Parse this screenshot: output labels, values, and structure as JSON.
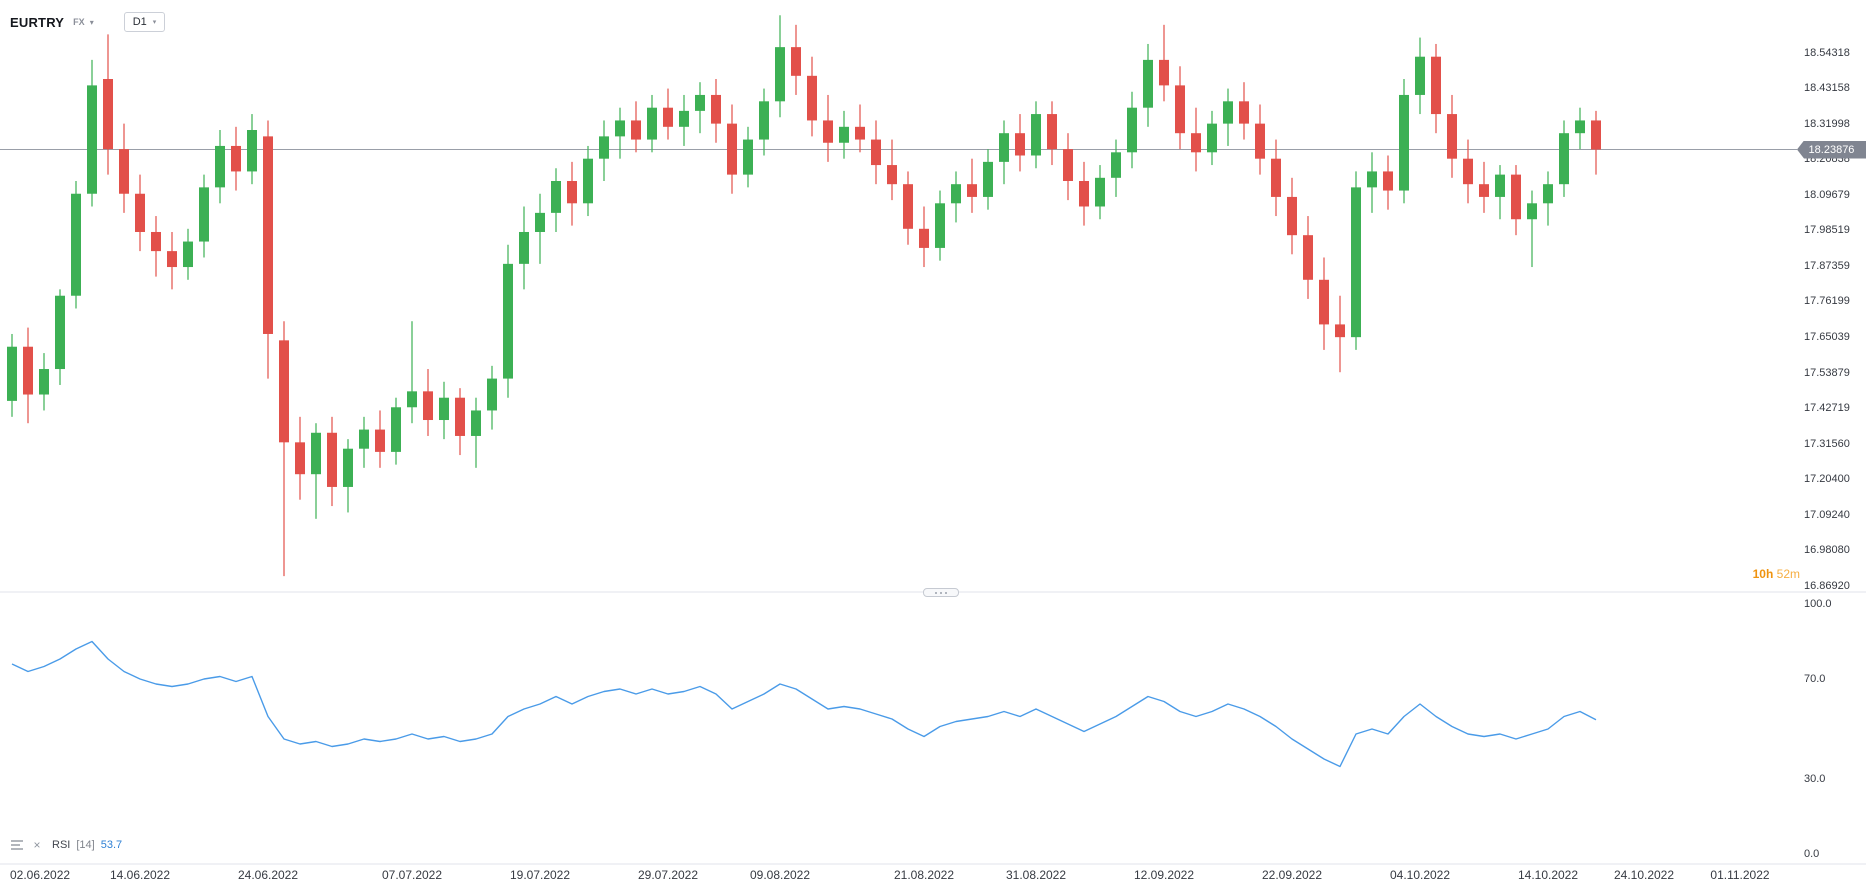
{
  "header": {
    "symbol": "EURTRY",
    "market": "FX",
    "timeframe": "D1"
  },
  "price_badge": "18.23876",
  "countdown": {
    "hours": "10h",
    "minutes": "52m"
  },
  "rsi_legend": {
    "name": "RSI",
    "params": "[14]",
    "value": "53.7"
  },
  "chart_data": {
    "type": "candlestick",
    "title": "EURTRY D1",
    "ylim": [
      16.8692,
      18.66
    ],
    "grid": false,
    "legend_position": "top-left",
    "current_price": 18.23876,
    "price_ticks": [
      "18.54318",
      "18.43158",
      "18.31998",
      "18.20838",
      "18.09679",
      "17.98519",
      "17.87359",
      "17.76199",
      "17.65039",
      "17.53879",
      "17.42719",
      "17.31560",
      "17.20400",
      "17.09240",
      "16.98080",
      "16.86920"
    ],
    "time_ticks": [
      {
        "label": "02.06.2022",
        "index": 0
      },
      {
        "label": "14.06.2022",
        "index": 8
      },
      {
        "label": "24.06.2022",
        "index": 16
      },
      {
        "label": "07.07.2022",
        "index": 25
      },
      {
        "label": "19.07.2022",
        "index": 33
      },
      {
        "label": "29.07.2022",
        "index": 41
      },
      {
        "label": "09.08.2022",
        "index": 48
      },
      {
        "label": "21.08.2022",
        "index": 57
      },
      {
        "label": "31.08.2022",
        "index": 64
      },
      {
        "label": "12.09.2022",
        "index": 72
      },
      {
        "label": "22.09.2022",
        "index": 80
      },
      {
        "label": "04.10.2022",
        "index": 88
      },
      {
        "label": "14.10.2022",
        "index": 96
      },
      {
        "label": "24.10.2022",
        "index": 102
      },
      {
        "label": "01.11.2022",
        "index": 108
      }
    ],
    "candles_ohlc": [
      [
        17.45,
        17.66,
        17.4,
        17.62
      ],
      [
        17.62,
        17.68,
        17.38,
        17.47
      ],
      [
        17.47,
        17.6,
        17.42,
        17.55
      ],
      [
        17.55,
        17.8,
        17.5,
        17.78
      ],
      [
        17.78,
        18.14,
        17.74,
        18.1
      ],
      [
        18.1,
        18.52,
        18.06,
        18.44
      ],
      [
        18.46,
        18.6,
        18.16,
        18.24
      ],
      [
        18.24,
        18.32,
        18.04,
        18.1
      ],
      [
        18.1,
        18.16,
        17.92,
        17.98
      ],
      [
        17.98,
        18.03,
        17.84,
        17.92
      ],
      [
        17.92,
        17.98,
        17.8,
        17.87
      ],
      [
        17.87,
        17.99,
        17.83,
        17.95
      ],
      [
        17.95,
        18.16,
        17.9,
        18.12
      ],
      [
        18.12,
        18.3,
        18.07,
        18.25
      ],
      [
        18.25,
        18.31,
        18.11,
        18.17
      ],
      [
        18.17,
        18.35,
        18.13,
        18.3
      ],
      [
        18.28,
        18.33,
        17.52,
        17.66
      ],
      [
        17.64,
        17.7,
        16.9,
        17.32
      ],
      [
        17.32,
        17.4,
        17.14,
        17.22
      ],
      [
        17.22,
        17.38,
        17.08,
        17.35
      ],
      [
        17.35,
        17.4,
        17.12,
        17.18
      ],
      [
        17.18,
        17.33,
        17.1,
        17.3
      ],
      [
        17.3,
        17.4,
        17.24,
        17.36
      ],
      [
        17.36,
        17.42,
        17.24,
        17.29
      ],
      [
        17.29,
        17.46,
        17.25,
        17.43
      ],
      [
        17.43,
        17.7,
        17.38,
        17.48
      ],
      [
        17.48,
        17.55,
        17.34,
        17.39
      ],
      [
        17.39,
        17.51,
        17.33,
        17.46
      ],
      [
        17.46,
        17.49,
        17.28,
        17.34
      ],
      [
        17.34,
        17.46,
        17.24,
        17.42
      ],
      [
        17.42,
        17.56,
        17.36,
        17.52
      ],
      [
        17.52,
        17.94,
        17.46,
        17.88
      ],
      [
        17.88,
        18.06,
        17.8,
        17.98
      ],
      [
        17.98,
        18.1,
        17.88,
        18.04
      ],
      [
        18.04,
        18.18,
        17.98,
        18.14
      ],
      [
        18.14,
        18.2,
        18.0,
        18.07
      ],
      [
        18.07,
        18.25,
        18.03,
        18.21
      ],
      [
        18.21,
        18.33,
        18.14,
        18.28
      ],
      [
        18.28,
        18.37,
        18.21,
        18.33
      ],
      [
        18.33,
        18.39,
        18.23,
        18.27
      ],
      [
        18.27,
        18.41,
        18.23,
        18.37
      ],
      [
        18.37,
        18.43,
        18.27,
        18.31
      ],
      [
        18.31,
        18.41,
        18.25,
        18.36
      ],
      [
        18.36,
        18.45,
        18.29,
        18.41
      ],
      [
        18.41,
        18.46,
        18.26,
        18.32
      ],
      [
        18.32,
        18.38,
        18.1,
        18.16
      ],
      [
        18.16,
        18.31,
        18.12,
        18.27
      ],
      [
        18.27,
        18.43,
        18.22,
        18.39
      ],
      [
        18.39,
        18.66,
        18.34,
        18.56
      ],
      [
        18.56,
        18.63,
        18.41,
        18.47
      ],
      [
        18.47,
        18.53,
        18.28,
        18.33
      ],
      [
        18.33,
        18.41,
        18.2,
        18.26
      ],
      [
        18.26,
        18.36,
        18.21,
        18.31
      ],
      [
        18.31,
        18.38,
        18.23,
        18.27
      ],
      [
        18.27,
        18.33,
        18.13,
        18.19
      ],
      [
        18.19,
        18.27,
        18.08,
        18.13
      ],
      [
        18.13,
        18.17,
        17.94,
        17.99
      ],
      [
        17.99,
        18.06,
        17.87,
        17.93
      ],
      [
        17.93,
        18.11,
        17.89,
        18.07
      ],
      [
        18.07,
        18.17,
        18.01,
        18.13
      ],
      [
        18.13,
        18.21,
        18.04,
        18.09
      ],
      [
        18.09,
        18.24,
        18.05,
        18.2
      ],
      [
        18.2,
        18.33,
        18.13,
        18.29
      ],
      [
        18.29,
        18.35,
        18.17,
        18.22
      ],
      [
        18.22,
        18.39,
        18.18,
        18.35
      ],
      [
        18.35,
        18.39,
        18.19,
        18.24
      ],
      [
        18.24,
        18.29,
        18.08,
        18.14
      ],
      [
        18.14,
        18.2,
        18.0,
        18.06
      ],
      [
        18.06,
        18.19,
        18.02,
        18.15
      ],
      [
        18.15,
        18.27,
        18.09,
        18.23
      ],
      [
        18.23,
        18.42,
        18.18,
        18.37
      ],
      [
        18.37,
        18.57,
        18.31,
        18.52
      ],
      [
        18.52,
        18.63,
        18.39,
        18.44
      ],
      [
        18.44,
        18.5,
        18.24,
        18.29
      ],
      [
        18.29,
        18.37,
        18.17,
        18.23
      ],
      [
        18.23,
        18.36,
        18.19,
        18.32
      ],
      [
        18.32,
        18.43,
        18.25,
        18.39
      ],
      [
        18.39,
        18.45,
        18.27,
        18.32
      ],
      [
        18.32,
        18.38,
        18.16,
        18.21
      ],
      [
        18.21,
        18.27,
        18.03,
        18.09
      ],
      [
        18.09,
        18.15,
        17.91,
        17.97
      ],
      [
        17.97,
        18.03,
        17.77,
        17.83
      ],
      [
        17.83,
        17.9,
        17.61,
        17.69
      ],
      [
        17.69,
        17.78,
        17.54,
        17.65
      ],
      [
        17.65,
        18.17,
        17.61,
        18.12
      ],
      [
        18.12,
        18.23,
        18.04,
        18.17
      ],
      [
        18.17,
        18.22,
        18.05,
        18.11
      ],
      [
        18.11,
        18.46,
        18.07,
        18.41
      ],
      [
        18.41,
        18.59,
        18.35,
        18.53
      ],
      [
        18.53,
        18.57,
        18.29,
        18.35
      ],
      [
        18.35,
        18.41,
        18.15,
        18.21
      ],
      [
        18.21,
        18.27,
        18.07,
        18.13
      ],
      [
        18.13,
        18.2,
        18.04,
        18.09
      ],
      [
        18.09,
        18.19,
        18.02,
        18.16
      ],
      [
        18.16,
        18.19,
        17.97,
        18.02
      ],
      [
        18.02,
        18.11,
        17.87,
        18.07
      ],
      [
        18.07,
        18.17,
        18.0,
        18.13
      ],
      [
        18.13,
        18.33,
        18.09,
        18.29
      ],
      [
        18.29,
        18.37,
        18.24,
        18.33
      ],
      [
        18.33,
        18.36,
        18.16,
        18.23876
      ]
    ],
    "indicator": {
      "type": "line",
      "name": "RSI",
      "period": 14,
      "last_value": 53.7,
      "axis_ticks": [
        "100.0",
        "70.0",
        "30.0",
        "0.0"
      ],
      "values": [
        76,
        73,
        75,
        78,
        82,
        85,
        78,
        73,
        70,
        68,
        67,
        68,
        70,
        71,
        69,
        71,
        55,
        46,
        44,
        45,
        43,
        44,
        46,
        45,
        46,
        48,
        46,
        47,
        45,
        46,
        48,
        55,
        58,
        60,
        63,
        60,
        63,
        65,
        66,
        64,
        66,
        64,
        65,
        67,
        64,
        58,
        61,
        64,
        68,
        66,
        62,
        58,
        59,
        58,
        56,
        54,
        50,
        47,
        51,
        53,
        54,
        55,
        57,
        55,
        58,
        55,
        52,
        49,
        52,
        55,
        59,
        63,
        61,
        57,
        55,
        57,
        60,
        58,
        55,
        51,
        46,
        42,
        38,
        35,
        48,
        50,
        48,
        55,
        60,
        55,
        51,
        48,
        47,
        48,
        46,
        48,
        50,
        55,
        57,
        53.7
      ]
    },
    "colors": {
      "up": "#3CB054",
      "down": "#E2504A",
      "rsi_line": "#4A9BE8",
      "price_line": "#999EA8",
      "separator": "#E1E3EB",
      "badge_bg": "#808591",
      "countdown": "#F5A623",
      "axis_text": "#363A42"
    }
  }
}
